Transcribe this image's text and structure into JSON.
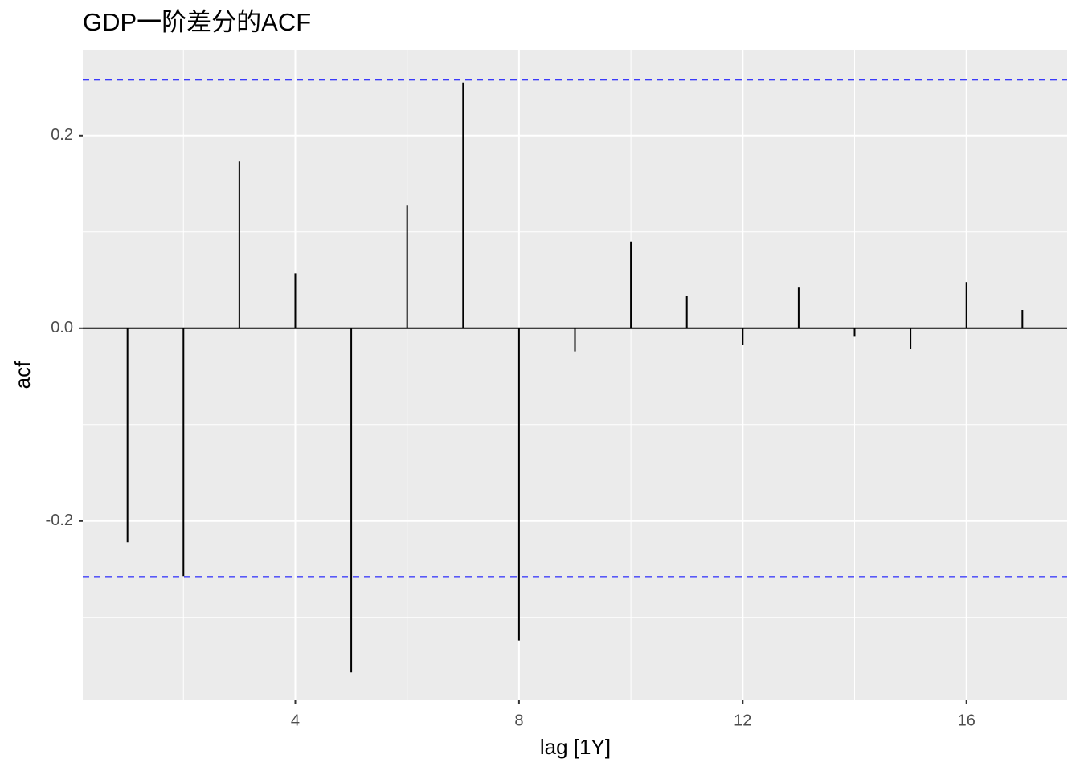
{
  "chart_data": {
    "type": "acf",
    "title": "GDP一阶差分的ACF",
    "x_label": "lag [1Y]",
    "y_label": "acf",
    "x": [
      1,
      2,
      3,
      4,
      5,
      6,
      7,
      8,
      9,
      10,
      11,
      12,
      13,
      14,
      15,
      16,
      17
    ],
    "values": [
      -0.222,
      -0.257,
      0.173,
      0.057,
      -0.357,
      0.128,
      0.255,
      -0.324,
      -0.024,
      0.09,
      0.034,
      -0.017,
      0.043,
      -0.008,
      -0.021,
      0.048,
      0.019
    ],
    "color": "#000000",
    "confidence_bounds": [
      0.258,
      -0.258
    ],
    "bound_color": "#0000ff",
    "xlim": [
      0.2,
      17.8
    ],
    "xticks": [
      4,
      8,
      12,
      16
    ],
    "ylim": [
      -0.386,
      0.289
    ],
    "yticks": [
      -0.2,
      {
        "value": 0,
        "label": "0.0"
      },
      0.2
    ],
    "grid": true
  }
}
